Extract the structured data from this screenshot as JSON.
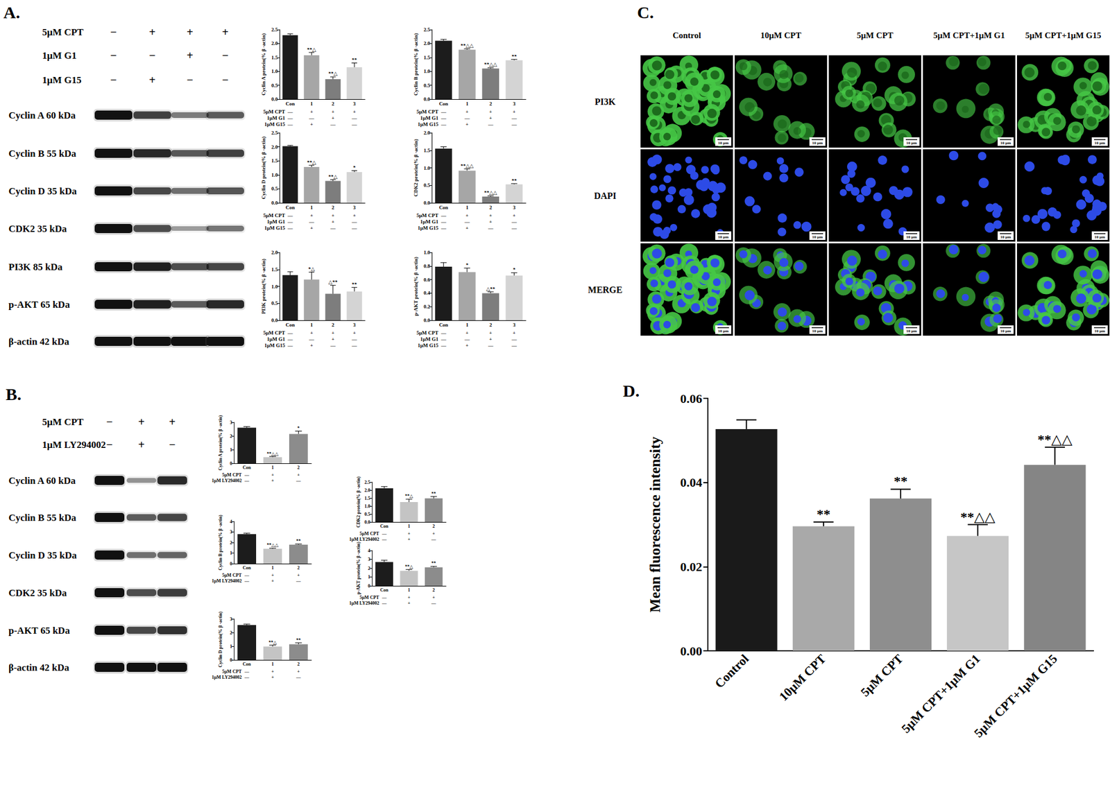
{
  "panel_labels": [
    "A.",
    "B.",
    "C.",
    "D."
  ],
  "blots": [
    {
      "treatments": [
        {
          "label": "5μM CPT",
          "signs": [
            "−",
            "+",
            "+",
            "+"
          ]
        },
        {
          "label": "1μM G1",
          "signs": [
            "−",
            "−",
            "+",
            "−"
          ]
        },
        {
          "label": "1μM G15",
          "signs": [
            "−",
            "+",
            "−",
            "−"
          ]
        }
      ],
      "bands": [
        "Cyclin A 60 kDa",
        "Cyclin B 55 kDa",
        "Cyclin D 35 kDa",
        "CDK2 35 kDa",
        "PI3K 85 kDa",
        "p-AKT 65 kDa",
        "β-actin 42 kDa"
      ]
    },
    {
      "treatments": [
        {
          "label": "5μM CPT",
          "signs": [
            "−",
            "+",
            "+"
          ]
        },
        {
          "label": "1μM LY294002",
          "signs": [
            "−",
            "+",
            "−"
          ]
        }
      ],
      "bands": [
        "Cyclin A 60 kDa",
        "Cyclin B 55 kDa",
        "Cyclin D 35 kDa",
        "CDK2 35 kDa",
        "p-AKT 65 kDa",
        "β-actin 42 kDa"
      ]
    }
  ],
  "microscopy": {
    "columns": [
      "Control",
      "10μM CPT",
      "5μM CPT",
      "5μM CPT+1μM G1",
      "5μM CPT+1μM G15"
    ],
    "rows": [
      "PI3K",
      "DAPI",
      "MERGE"
    ],
    "scale_bar": "10 μm"
  },
  "chart_data": [
    {
      "type": "bar",
      "ylabel": "Cyclin A protein(% β -actin)",
      "categories": [
        "Con",
        "1",
        "2",
        "3"
      ],
      "values": [
        2.3,
        1.58,
        0.72,
        1.15
      ],
      "errors": [
        0.05,
        0.1,
        0.08,
        0.15
      ],
      "annotations": [
        null,
        "**△",
        "**△",
        "**"
      ],
      "colors": [
        "#1c1c1c",
        "#a6a6a6",
        "#7d7d7d",
        "#d4d4d4"
      ],
      "ylim": [
        0,
        2.5
      ],
      "yticks": [
        {
          "value": 0,
          "label": "0.0"
        },
        0.5,
        {
          "value": 1,
          "label": "1.0"
        },
        1.5,
        {
          "value": 2,
          "label": "2.0"
        },
        2.5
      ],
      "grid": false,
      "conditions": [
        {
          "label": "5μM CPT",
          "signs": [
            "—",
            "+",
            "+",
            "+"
          ]
        },
        {
          "label": "1μM G1",
          "signs": [
            "—",
            "—",
            "+",
            "—"
          ]
        },
        {
          "label": "1μM G15",
          "signs": [
            "—",
            "+",
            "—",
            "—"
          ]
        }
      ]
    },
    {
      "type": "bar",
      "ylabel": "Cyclin B protein(% β -actin)",
      "categories": [
        "Con",
        "1",
        "2",
        "3"
      ],
      "values": [
        2.1,
        1.78,
        1.1,
        1.4
      ],
      "errors": [
        0.05,
        0.03,
        0.03,
        0.03
      ],
      "annotations": [
        null,
        "**△△",
        "**△△",
        "**"
      ],
      "colors": [
        "#1c1c1c",
        "#a6a6a6",
        "#7d7d7d",
        "#d4d4d4"
      ],
      "ylim": [
        0,
        2.5
      ],
      "yticks": [
        {
          "value": 0,
          "label": "0.0"
        },
        0.5,
        {
          "value": 1,
          "label": "1.0"
        },
        1.5,
        {
          "value": 2,
          "label": "2.0"
        },
        2.5
      ],
      "grid": false,
      "conditions": [
        {
          "label": "5μM CPT",
          "signs": [
            "—",
            "+",
            "+",
            "+"
          ]
        },
        {
          "label": "1μM G1",
          "signs": [
            "—",
            "—",
            "+",
            "—"
          ]
        },
        {
          "label": "1μM G15",
          "signs": [
            "—",
            "+",
            "—",
            "—"
          ]
        }
      ]
    },
    {
      "type": "bar",
      "ylabel": "Cyclin D protein(% β -actin)",
      "categories": [
        "Con",
        "1",
        "2",
        "3"
      ],
      "values": [
        2.02,
        1.28,
        0.78,
        1.1
      ],
      "errors": [
        0.03,
        0.06,
        0.05,
        0.05
      ],
      "annotations": [
        null,
        "**△",
        "**△",
        "*"
      ],
      "colors": [
        "#1c1c1c",
        "#a6a6a6",
        "#7d7d7d",
        "#d4d4d4"
      ],
      "ylim": [
        0,
        2.5
      ],
      "yticks": [
        {
          "value": 0,
          "label": "0.0"
        },
        0.5,
        {
          "value": 1,
          "label": "1.0"
        },
        1.5,
        {
          "value": 2,
          "label": "2.0"
        },
        2.5
      ],
      "grid": false,
      "conditions": [
        {
          "label": "5μM CPT",
          "signs": [
            "—",
            "+",
            "+",
            "+"
          ]
        },
        {
          "label": "1μM G1",
          "signs": [
            "—",
            "—",
            "+",
            "—"
          ]
        },
        {
          "label": "1μM G15",
          "signs": [
            "—",
            "+",
            "—",
            "—"
          ]
        }
      ]
    },
    {
      "type": "bar",
      "ylabel": "CDK2 protein(% β -actin)",
      "categories": [
        "Con",
        "1",
        "2",
        "3"
      ],
      "values": [
        1.55,
        0.92,
        0.18,
        0.53
      ],
      "errors": [
        0.05,
        0.05,
        0.02,
        0.02
      ],
      "annotations": [
        null,
        "**△△",
        "**△△",
        "**"
      ],
      "colors": [
        "#1c1c1c",
        "#a6a6a6",
        "#7d7d7d",
        "#d4d4d4"
      ],
      "ylim": [
        0,
        2
      ],
      "yticks": [
        {
          "value": 0,
          "label": "0.0"
        },
        0.5,
        {
          "value": 1,
          "label": "1.0"
        },
        1.5,
        {
          "value": 2,
          "label": "2.0"
        }
      ],
      "grid": false,
      "conditions": [
        {
          "label": "5μM CPT",
          "signs": [
            "—",
            "+",
            "+",
            "+"
          ]
        },
        {
          "label": "1μM G1",
          "signs": [
            "—",
            "—",
            "+",
            "—"
          ]
        },
        {
          "label": "1μM G15",
          "signs": [
            "—",
            "+",
            "—",
            "—"
          ]
        }
      ]
    },
    {
      "type": "bar",
      "ylabel": "PI3K protein(% β -actin)",
      "categories": [
        "Con",
        "1",
        "2",
        "3"
      ],
      "values": [
        1.33,
        1.2,
        0.78,
        0.85
      ],
      "errors": [
        0.1,
        0.22,
        0.25,
        0.12
      ],
      "annotations": [
        null,
        "*△",
        "△**",
        "**"
      ],
      "colors": [
        "#1c1c1c",
        "#a6a6a6",
        "#7d7d7d",
        "#d4d4d4"
      ],
      "ylim": [
        0,
        2
      ],
      "yticks": [
        {
          "value": 0,
          "label": "0.0"
        },
        0.5,
        {
          "value": 1,
          "label": "1.0"
        },
        1.5,
        {
          "value": 2,
          "label": "2.0"
        }
      ],
      "grid": false,
      "conditions": [
        {
          "label": "5μM CPT",
          "signs": [
            "—",
            "+",
            "+",
            "+"
          ]
        },
        {
          "label": "1μM G1",
          "signs": [
            "—",
            "—",
            "+",
            "—"
          ]
        },
        {
          "label": "1μM G15",
          "signs": [
            "—",
            "+",
            "—",
            "—"
          ]
        }
      ]
    },
    {
      "type": "bar",
      "ylabel": "p-AKT protein(% β -actin)",
      "categories": [
        "Con",
        "1",
        "2",
        "3"
      ],
      "values": [
        0.79,
        0.71,
        0.4,
        0.66
      ],
      "errors": [
        0.06,
        0.06,
        0.02,
        0.04
      ],
      "annotations": [
        null,
        "*",
        "△**",
        "*"
      ],
      "colors": [
        "#1c1c1c",
        "#a6a6a6",
        "#7d7d7d",
        "#d4d4d4"
      ],
      "ylim": [
        0,
        1
      ],
      "yticks": [
        {
          "value": 0,
          "label": "0.0"
        },
        0.2,
        0.4,
        0.6,
        0.8,
        {
          "value": 1,
          "label": "1.0"
        }
      ],
      "grid": false,
      "conditions": [
        {
          "label": "5μM CPT",
          "signs": [
            "—",
            "+",
            "+",
            "+"
          ]
        },
        {
          "label": "1μM G1",
          "signs": [
            "—",
            "—",
            "+",
            "—"
          ]
        },
        {
          "label": "1μM G15",
          "signs": [
            "—",
            "+",
            "—",
            "—"
          ]
        }
      ]
    },
    {
      "type": "bar",
      "ylabel": "Cyclin A protein(% β -actin)",
      "categories": [
        "Con",
        "1",
        "2"
      ],
      "values": [
        2.6,
        0.45,
        2.15
      ],
      "errors": [
        0.08,
        0.05,
        0.2
      ],
      "annotations": [
        null,
        "**△△",
        "*"
      ],
      "colors": [
        "#1c1c1c",
        "#c4c4c4",
        "#8c8c8c"
      ],
      "ylim": [
        0,
        3
      ],
      "yticks": [
        0,
        1,
        2,
        3
      ],
      "grid": false,
      "conditions": [
        {
          "label": "5μM CPT",
          "signs": [
            "—",
            "+",
            "+"
          ]
        },
        {
          "label": "1μM LY294002",
          "signs": [
            "—",
            "+",
            "—"
          ]
        }
      ]
    },
    {
      "type": "bar",
      "ylabel": "Cyclin B protein(% β -actin)",
      "categories": [
        "Con",
        "1",
        "2"
      ],
      "values": [
        2.8,
        1.4,
        1.8
      ],
      "errors": [
        0.08,
        0.06,
        0.06
      ],
      "annotations": [
        null,
        "**△△",
        "**"
      ],
      "colors": [
        "#1c1c1c",
        "#c4c4c4",
        "#8c8c8c"
      ],
      "ylim": [
        0,
        4
      ],
      "yticks": [
        0,
        1,
        2,
        3,
        4
      ],
      "grid": false,
      "conditions": [
        {
          "label": "5μM CPT",
          "signs": [
            "—",
            "+",
            "+"
          ]
        },
        {
          "label": "1μM LY294002",
          "signs": [
            "—",
            "+",
            "—"
          ]
        }
      ]
    },
    {
      "type": "bar",
      "ylabel": "Cyclin D protein(% β -actin)",
      "categories": [
        "Con",
        "1",
        "2"
      ],
      "values": [
        2.55,
        0.98,
        1.15
      ],
      "errors": [
        0.07,
        0.1,
        0.1
      ],
      "annotations": [
        null,
        "**△",
        "**"
      ],
      "colors": [
        "#1c1c1c",
        "#c4c4c4",
        "#8c8c8c"
      ],
      "ylim": [
        0,
        3
      ],
      "yticks": [
        0,
        1,
        2,
        3
      ],
      "grid": false,
      "conditions": [
        {
          "label": "5μM CPT",
          "signs": [
            "—",
            "+",
            "+"
          ]
        },
        {
          "label": "1μM LY294002",
          "signs": [
            "—",
            "+",
            "—"
          ]
        }
      ]
    },
    {
      "type": "bar",
      "ylabel": "CDK2 protein(% β -actin)",
      "categories": [
        "Con",
        "1",
        "2"
      ],
      "values": [
        2.12,
        1.25,
        1.48
      ],
      "errors": [
        0.1,
        0.18,
        0.12
      ],
      "annotations": [
        null,
        "**△",
        "**"
      ],
      "colors": [
        "#1c1c1c",
        "#c4c4c4",
        "#8c8c8c"
      ],
      "ylim": [
        0,
        2.5
      ],
      "yticks": [
        {
          "value": 0,
          "label": "0.0"
        },
        0.5,
        {
          "value": 1,
          "label": "1.0"
        },
        1.5,
        {
          "value": 2,
          "label": "2.0"
        },
        2.5
      ],
      "grid": false,
      "conditions": [
        {
          "label": "5μM CPT",
          "signs": [
            "—",
            "+",
            "+"
          ]
        },
        {
          "label": "1μM LY294002",
          "signs": [
            "—",
            "+",
            "—"
          ]
        }
      ]
    },
    {
      "type": "bar",
      "ylabel": "p-AKT protein(% β -actin)",
      "categories": [
        "Con",
        "1",
        "2"
      ],
      "values": [
        2.7,
        1.7,
        2.1
      ],
      "errors": [
        0.2,
        0.15,
        0.1
      ],
      "annotations": [
        null,
        "**△",
        "**"
      ],
      "colors": [
        "#1c1c1c",
        "#c4c4c4",
        "#8c8c8c"
      ],
      "ylim": [
        0,
        4
      ],
      "yticks": [
        0,
        1,
        2,
        3,
        4
      ],
      "grid": false,
      "conditions": [
        {
          "label": "5μM CPT",
          "signs": [
            "—",
            "+",
            "+"
          ]
        },
        {
          "label": "1μM LY294002",
          "signs": [
            "—",
            "+",
            "—"
          ]
        }
      ]
    },
    {
      "type": "bar",
      "ylabel": "Mean fluorescence intensity",
      "categories": [
        "Control",
        "10μM CPT",
        "5μM CPT",
        "5μM CPT+1μM G1",
        "5μM CPT+1μM G15"
      ],
      "values": [
        0.0527,
        0.0296,
        0.0362,
        0.0273,
        0.0442
      ],
      "errors": [
        0.0022,
        0.001,
        0.0022,
        0.0027,
        0.0042
      ],
      "annotations": [
        null,
        "**",
        "**",
        "**△△",
        "**△△"
      ],
      "colors": [
        "#1a1a1a",
        "#a9a9a9",
        "#8e8e8e",
        "#c6c6c6",
        "#858585"
      ],
      "ylim": [
        0,
        0.06
      ],
      "yticks": [
        {
          "value": 0,
          "label": "0.00"
        },
        0.02,
        0.04,
        0.06
      ],
      "grid": false
    }
  ]
}
